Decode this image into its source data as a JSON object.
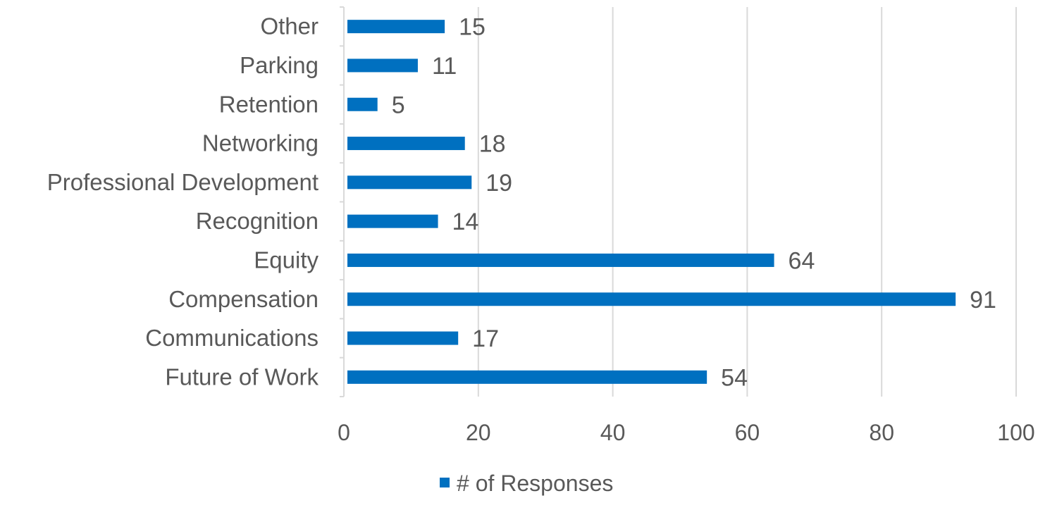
{
  "chart_data": {
    "type": "bar",
    "orientation": "horizontal",
    "categories": [
      "Other",
      "Parking",
      "Retention",
      "Networking",
      "Professional Development",
      "Recognition",
      "Equity",
      "Compensation",
      "Communications",
      "Future of Work"
    ],
    "series": [
      {
        "name": "# of Responses",
        "values": [
          15,
          11,
          5,
          18,
          19,
          14,
          64,
          91,
          17,
          54
        ]
      }
    ],
    "xlim": [
      0,
      100
    ],
    "x_ticks": [
      0,
      20,
      40,
      60,
      80,
      100
    ],
    "grid": true,
    "data_labels": true,
    "legend_position": "bottom",
    "colors": {
      "bar": "#0070c0",
      "grid": "#d9d9d9",
      "text": "#595959"
    }
  }
}
